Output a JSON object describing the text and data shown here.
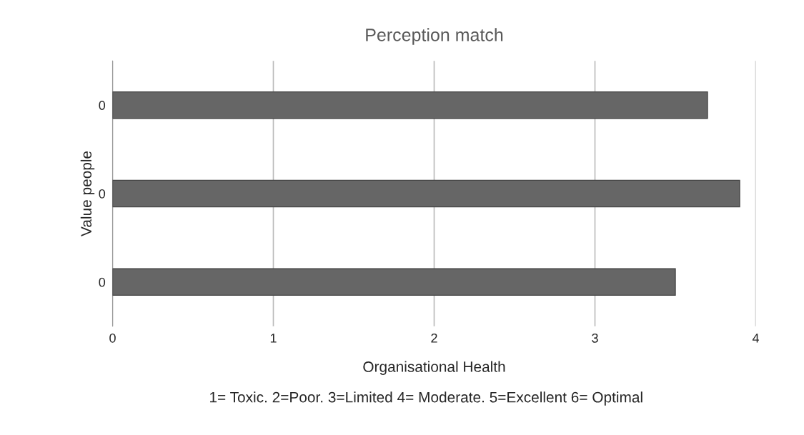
{
  "chart_data": {
    "type": "bar",
    "orientation": "horizontal",
    "title": "Perception match",
    "categories": [
      "0",
      "0",
      "0"
    ],
    "values": [
      3.7,
      3.9,
      3.5
    ],
    "color": "#666666",
    "xlim": [
      0,
      4
    ],
    "xticks": [
      0,
      1,
      2,
      3,
      4
    ],
    "grid": "x",
    "xlabel": "Organisational Health",
    "ylabel": "Value people",
    "annotations": [
      "1= Toxic. 2=Poor. 3=Limited 4= Moderate. 5=Excellent 6= Optimal"
    ]
  }
}
